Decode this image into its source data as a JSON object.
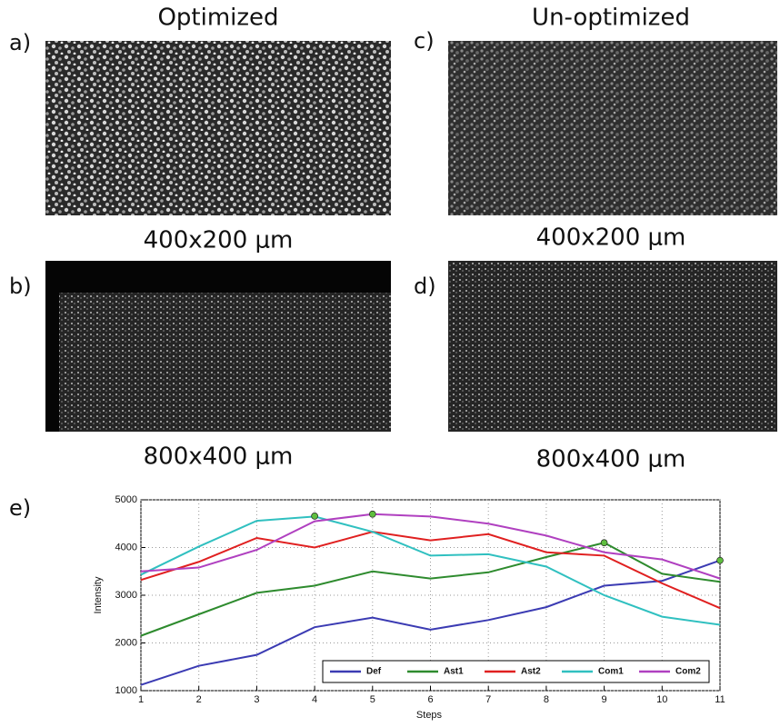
{
  "columns": [
    {
      "title": "Optimized"
    },
    {
      "title": "Un-optimized"
    }
  ],
  "panels": [
    {
      "label": "a)",
      "caption": "400x200 μm"
    },
    {
      "label": "c)",
      "caption": "400x200 μm"
    },
    {
      "label": "b)",
      "caption": "800x400 μm"
    },
    {
      "label": "d)",
      "caption": "800x400 μm"
    }
  ],
  "chart_label": "e)",
  "chart_data": {
    "type": "line",
    "xlabel": "Steps",
    "ylabel": "Intensity",
    "x": [
      1,
      2,
      3,
      4,
      5,
      6,
      7,
      8,
      9,
      10,
      11
    ],
    "xlim": [
      1,
      11
    ],
    "xticks": [
      1,
      2,
      3,
      4,
      5,
      6,
      7,
      8,
      9,
      10,
      11
    ],
    "ylim": [
      1000,
      5000
    ],
    "yticks": [
      1000,
      2000,
      3000,
      4000,
      5000
    ],
    "grid": true,
    "legend": "lower right",
    "series": [
      {
        "name": "Def",
        "color": "#3b3bb3",
        "values": [
          1120,
          1520,
          1750,
          2330,
          2530,
          2280,
          2480,
          2750,
          3200,
          3300,
          3730
        ]
      },
      {
        "name": "Ast1",
        "color": "#2e8b2e",
        "values": [
          2150,
          2600,
          3050,
          3200,
          3500,
          3350,
          3480,
          3800,
          4100,
          3450,
          3280
        ]
      },
      {
        "name": "Ast2",
        "color": "#e02020",
        "values": [
          3320,
          3700,
          4200,
          4000,
          4330,
          4150,
          4280,
          3900,
          3830,
          3250,
          2730
        ]
      },
      {
        "name": "Com1",
        "color": "#30c0c0",
        "values": [
          3430,
          4020,
          4560,
          4650,
          4330,
          3830,
          3860,
          3600,
          3000,
          2550,
          2380
        ]
      },
      {
        "name": "Com2",
        "color": "#b040c0",
        "values": [
          3500,
          3580,
          3950,
          4550,
          4700,
          4650,
          4500,
          4250,
          3900,
          3750,
          3350
        ]
      }
    ],
    "markers": {
      "color": "#5fbf3f",
      "x": [
        4,
        5,
        9,
        11
      ],
      "y": [
        4660,
        4700,
        4100,
        3730
      ]
    }
  }
}
